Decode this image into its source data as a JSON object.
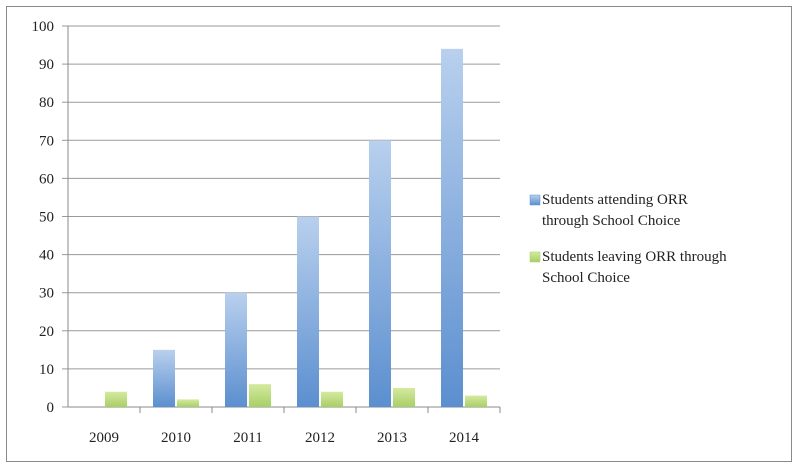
{
  "chart_data": {
    "type": "bar",
    "title": "",
    "xlabel": "",
    "ylabel": "",
    "categories": [
      "2009",
      "2010",
      "2011",
      "2012",
      "2013",
      "2014"
    ],
    "ylim": [
      0,
      100
    ],
    "yticks": [
      0,
      10,
      20,
      30,
      40,
      50,
      60,
      70,
      80,
      90,
      100
    ],
    "grid": true,
    "legend_position": "right",
    "series": [
      {
        "name": "Students attending ORR through School Choice",
        "legend_lines": [
          "Students attending ORR",
          "through School Choice"
        ],
        "values": [
          0,
          15,
          30,
          50,
          70,
          94
        ],
        "color": "#6f9fd8"
      },
      {
        "name": "Students leaving ORR through School Choice",
        "legend_lines": [
          "Students leaving ORR through",
          "School Choice"
        ],
        "values": [
          4,
          2,
          6,
          4,
          5,
          3
        ],
        "color": "#b5d77a"
      }
    ]
  }
}
